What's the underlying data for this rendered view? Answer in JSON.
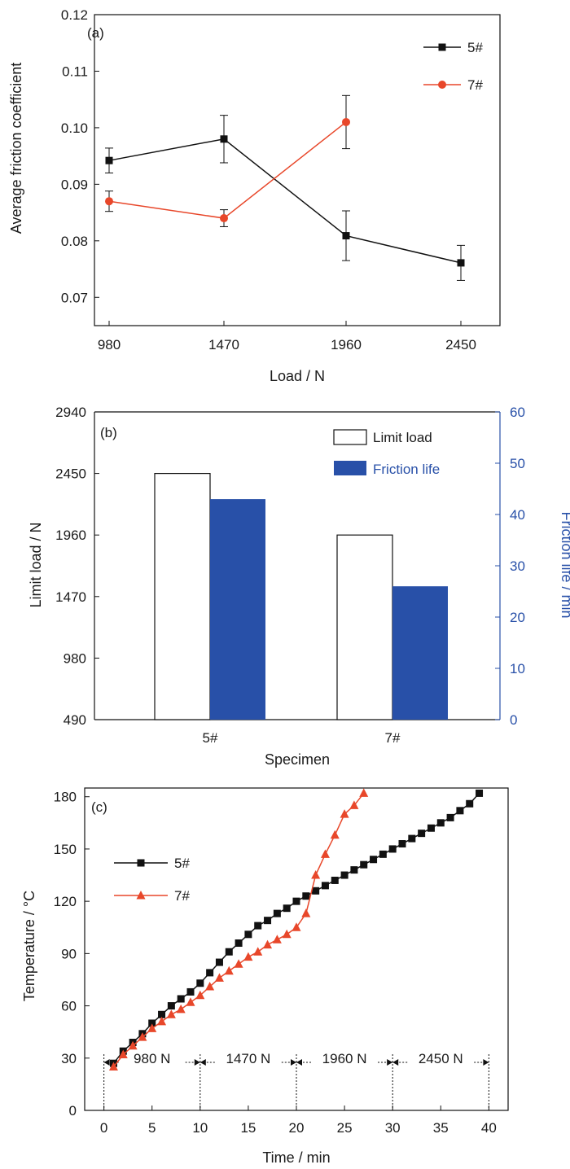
{
  "colors": {
    "s5": "#111111",
    "s7": "#e8472a",
    "friction": "#2850a8",
    "axis": "#111111"
  },
  "chart_data": [
    {
      "panel": "(a)",
      "type": "line",
      "xlabel": "Load / N",
      "ylabel": "Average friction coefficient",
      "categories": [
        "980",
        "1470",
        "1960",
        "2450"
      ],
      "ylim": [
        0.065,
        0.12
      ],
      "yticks": [
        "0.07",
        "0.08",
        "0.09",
        "0.10",
        "0.11",
        "0.12"
      ],
      "legend_position": "top-right",
      "series": [
        {
          "name": "5#",
          "marker": "square",
          "values": [
            0.0942,
            0.098,
            0.0809,
            0.0761
          ],
          "err": [
            0.0022,
            0.0042,
            0.0044,
            0.0031
          ]
        },
        {
          "name": "7#",
          "marker": "circle",
          "values": [
            0.087,
            0.084,
            0.101,
            null
          ],
          "err": [
            0.0018,
            0.0015,
            0.0047,
            null
          ]
        }
      ]
    },
    {
      "panel": "(b)",
      "type": "bar",
      "xlabel": "Specimen",
      "ylabel": "Limit load / N",
      "y2label": "Friction life / min",
      "categories": [
        "5#",
        "7#"
      ],
      "ylim": [
        490,
        2940
      ],
      "yticks": [
        "490",
        "980",
        "1470",
        "1960",
        "2450",
        "2940"
      ],
      "y2lim": [
        0,
        60
      ],
      "y2ticks": [
        "0",
        "10",
        "20",
        "30",
        "40",
        "50",
        "60"
      ],
      "legend_position": "top-right",
      "series": [
        {
          "name": "Limit load",
          "axis": "left",
          "values": [
            2450,
            1960
          ]
        },
        {
          "name": "Friction life",
          "axis": "right",
          "values": [
            43,
            26
          ]
        }
      ]
    },
    {
      "panel": "(c)",
      "type": "line",
      "xlabel": "Time / min",
      "ylabel": "Temperature / °C",
      "xlim": [
        -2,
        42
      ],
      "xticks": [
        "0",
        "5",
        "10",
        "15",
        "20",
        "25",
        "30",
        "35",
        "40"
      ],
      "ylim": [
        0,
        185
      ],
      "yticks": [
        "0",
        "30",
        "60",
        "90",
        "120",
        "150",
        "180"
      ],
      "legend_position": "top-left",
      "load_segments": [
        {
          "label": "980 N",
          "from": 0,
          "to": 10
        },
        {
          "label": "1470 N",
          "from": 10,
          "to": 20
        },
        {
          "label": "1960 N",
          "from": 20,
          "to": 30
        },
        {
          "label": "2450 N",
          "from": 30,
          "to": 40
        }
      ],
      "series": [
        {
          "name": "5#",
          "marker": "square",
          "x": [
            1,
            2,
            3,
            4,
            5,
            6,
            7,
            8,
            9,
            10,
            11,
            12,
            13,
            14,
            15,
            16,
            17,
            18,
            19,
            20,
            21,
            22,
            23,
            24,
            25,
            26,
            27,
            28,
            29,
            30,
            31,
            32,
            33,
            34,
            35,
            36,
            37,
            38,
            39
          ],
          "y": [
            27,
            34,
            39,
            44,
            50,
            55,
            60,
            64,
            68,
            73,
            79,
            85,
            91,
            96,
            101,
            106,
            109,
            113,
            116,
            120,
            123,
            126,
            129,
            132,
            135,
            138,
            141,
            144,
            147,
            150,
            153,
            156,
            159,
            162,
            165,
            168,
            172,
            176,
            182
          ]
        },
        {
          "name": "7#",
          "marker": "triangle",
          "x": [
            1,
            2,
            3,
            4,
            5,
            6,
            7,
            8,
            9,
            10,
            11,
            12,
            13,
            14,
            15,
            16,
            17,
            18,
            19,
            20,
            21,
            22,
            23,
            24,
            25,
            26,
            27
          ],
          "y": [
            25,
            32,
            37,
            42,
            47,
            51,
            55,
            58,
            62,
            66,
            71,
            76,
            80,
            84,
            88,
            91,
            95,
            98,
            101,
            105,
            113,
            135,
            147,
            158,
            170,
            175,
            182
          ]
        }
      ]
    }
  ]
}
